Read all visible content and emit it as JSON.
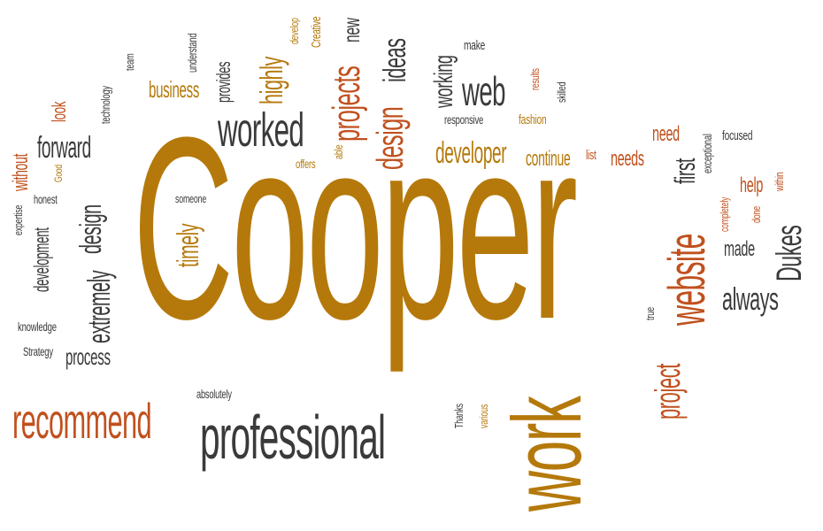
{
  "colors": {
    "gold": "#b5790b",
    "rust": "#c0511e",
    "gray": "#3a3a3a"
  },
  "words": [
    {
      "text": "Cooper",
      "c": "gold"
    },
    {
      "text": "work",
      "c": "gold"
    },
    {
      "text": "professional",
      "c": "gray"
    },
    {
      "text": "recommend",
      "c": "rust"
    },
    {
      "text": "website",
      "c": "rust"
    },
    {
      "text": "project",
      "c": "rust"
    },
    {
      "text": "worked",
      "c": "gray"
    },
    {
      "text": "web",
      "c": "gray"
    },
    {
      "text": "design",
      "c": "rust"
    },
    {
      "text": "projects",
      "c": "rust"
    },
    {
      "text": "ideas",
      "c": "gray"
    },
    {
      "text": "highly",
      "c": "gold"
    },
    {
      "text": "developer",
      "c": "gold"
    },
    {
      "text": "continue",
      "c": "gold"
    },
    {
      "text": "needs",
      "c": "rust"
    },
    {
      "text": "need",
      "c": "rust"
    },
    {
      "text": "first",
      "c": "gray"
    },
    {
      "text": "Dukes",
      "c": "gray"
    },
    {
      "text": "always",
      "c": "gray"
    },
    {
      "text": "made",
      "c": "gray"
    },
    {
      "text": "help",
      "c": "rust"
    },
    {
      "text": "forward",
      "c": "gray"
    },
    {
      "text": "design",
      "c": "gray"
    },
    {
      "text": "extremely",
      "c": "gray"
    },
    {
      "text": "process",
      "c": "gray"
    },
    {
      "text": "development",
      "c": "gray"
    },
    {
      "text": "timely",
      "c": "gold"
    },
    {
      "text": "business",
      "c": "gold"
    },
    {
      "text": "working",
      "c": "gray"
    },
    {
      "text": "look",
      "c": "rust"
    },
    {
      "text": "without",
      "c": "rust"
    },
    {
      "text": "knowledge",
      "c": "gray"
    },
    {
      "text": "Strategy",
      "c": "gray"
    },
    {
      "text": "absolutely",
      "c": "gray"
    },
    {
      "text": "someone",
      "c": "gray"
    },
    {
      "text": "honest",
      "c": "gray"
    },
    {
      "text": "expertise",
      "c": "gray"
    },
    {
      "text": "Good",
      "c": "gold"
    },
    {
      "text": "technology",
      "c": "gray"
    },
    {
      "text": "team",
      "c": "gray"
    },
    {
      "text": "provides",
      "c": "gray"
    },
    {
      "text": "understand",
      "c": "gray"
    },
    {
      "text": "develop",
      "c": "gold"
    },
    {
      "text": "Creative",
      "c": "gold"
    },
    {
      "text": "new",
      "c": "gray"
    },
    {
      "text": "make",
      "c": "gray"
    },
    {
      "text": "responsive",
      "c": "gray"
    },
    {
      "text": "fashion",
      "c": "gold"
    },
    {
      "text": "results",
      "c": "rust"
    },
    {
      "text": "skilled",
      "c": "gray"
    },
    {
      "text": "offers",
      "c": "gold"
    },
    {
      "text": "able",
      "c": "gold"
    },
    {
      "text": "list",
      "c": "rust"
    },
    {
      "text": "exceptional",
      "c": "gray"
    },
    {
      "text": "focused",
      "c": "gray"
    },
    {
      "text": "within",
      "c": "rust"
    },
    {
      "text": "done",
      "c": "rust"
    },
    {
      "text": "completely",
      "c": "rust"
    },
    {
      "text": "true",
      "c": "gray"
    },
    {
      "text": "Thanks",
      "c": "gray"
    },
    {
      "text": "various",
      "c": "gold"
    }
  ]
}
